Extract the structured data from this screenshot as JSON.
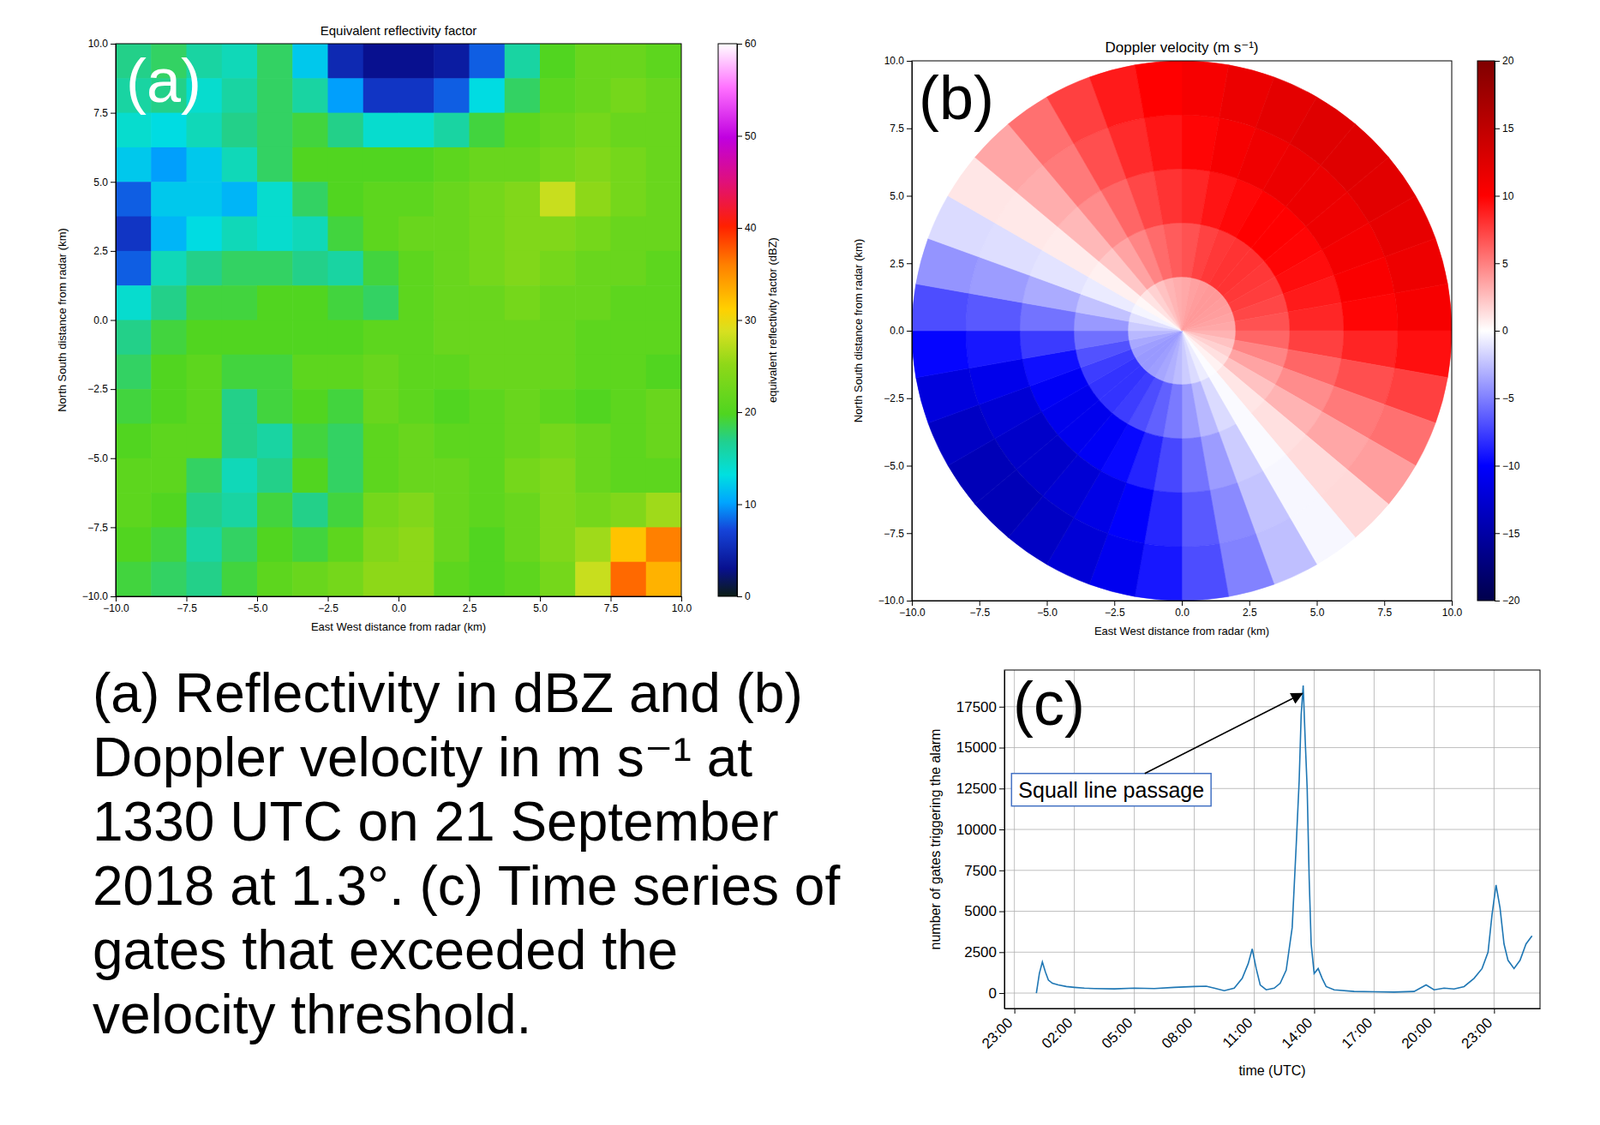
{
  "caption": "(a) Reflectivity in dBZ and (b) Doppler velocity in m s⁻¹ at 1330 UTC on 21 September 2018 at 1.3°. (c) Time series of gates that exceeded the velocity threshold.",
  "chart_data": [
    {
      "type": "heatmap",
      "panel_label": "(a)",
      "title": "Equivalent reflectivity factor",
      "x_label": "East West distance from radar (km)",
      "y_label": "North South distance from radar (km)",
      "xlim": [
        -10,
        10
      ],
      "ylim": [
        -10,
        10
      ],
      "xticks": [
        {
          "value": -10,
          "label": "−10.0"
        },
        {
          "value": -7.5,
          "label": "−7.5"
        },
        {
          "value": -5,
          "label": "−5.0"
        },
        {
          "value": -2.5,
          "label": "−2.5"
        },
        {
          "value": 0,
          "label": "0.0"
        },
        2.5,
        {
          "value": 5,
          "label": "5.0"
        },
        7.5,
        {
          "value": 10,
          "label": "10.0"
        }
      ],
      "yticks": [
        {
          "value": -10,
          "label": "−10.0"
        },
        {
          "value": -7.5,
          "label": "−7.5"
        },
        {
          "value": -5,
          "label": "−5.0"
        },
        {
          "value": -2.5,
          "label": "−2.5"
        },
        {
          "value": 0,
          "label": "0.0"
        },
        2.5,
        {
          "value": 5,
          "label": "5.0"
        },
        7.5,
        {
          "value": 10,
          "label": "10.0"
        }
      ],
      "x_edges": [
        -10,
        -8.75,
        -7.5,
        -6.25,
        -5,
        -3.75,
        -2.5,
        -1.25,
        0,
        1.25,
        2.5,
        3.75,
        5,
        6.25,
        7.5,
        8.75,
        10
      ],
      "y_edges": [
        10,
        8.75,
        7.5,
        6.25,
        5,
        3.75,
        2.5,
        1.25,
        0,
        -1.25,
        -2.5,
        -3.75,
        -5,
        -6.25,
        -7.5,
        -8.75,
        -10
      ],
      "z": [
        [
          17,
          18,
          16,
          15,
          18,
          12,
          5,
          3,
          3,
          4,
          8,
          16,
          20,
          22,
          22,
          21
        ],
        [
          16,
          17,
          14,
          16,
          18,
          16,
          10,
          6,
          6,
          8,
          13,
          18,
          21,
          22,
          23,
          22
        ],
        [
          14,
          13,
          15,
          17,
          18,
          19,
          17,
          14,
          14,
          16,
          19,
          21,
          22,
          23,
          22,
          22
        ],
        [
          12,
          10,
          12,
          15,
          18,
          20,
          20,
          20,
          20,
          21,
          22,
          22,
          23,
          24,
          23,
          22
        ],
        [
          8,
          12,
          12,
          11,
          14,
          18,
          20,
          21,
          21,
          22,
          23,
          24,
          28,
          25,
          23,
          22
        ],
        [
          6,
          11,
          13,
          15,
          14,
          15,
          19,
          21,
          22,
          22,
          23,
          24,
          24,
          23,
          22,
          22
        ],
        [
          8,
          15,
          17,
          18,
          18,
          17,
          16,
          19,
          21,
          22,
          23,
          24,
          23,
          22,
          22,
          21
        ],
        [
          14,
          17,
          19,
          19,
          20,
          20,
          19,
          18,
          21,
          22,
          22,
          23,
          22,
          22,
          21,
          21
        ],
        [
          17,
          19,
          20,
          20,
          20,
          20,
          20,
          21,
          21,
          22,
          22,
          22,
          22,
          21,
          21,
          21
        ],
        [
          18,
          20,
          21,
          19,
          19,
          21,
          21,
          22,
          21,
          21,
          22,
          22,
          22,
          21,
          21,
          20
        ],
        [
          19,
          20,
          21,
          17,
          19,
          20,
          19,
          22,
          21,
          20,
          21,
          22,
          21,
          20,
          21,
          22
        ],
        [
          20,
          21,
          21,
          17,
          16,
          19,
          18,
          21,
          22,
          21,
          21,
          22,
          23,
          22,
          21,
          22
        ],
        [
          21,
          21,
          18,
          15,
          17,
          20,
          18,
          21,
          22,
          22,
          21,
          23,
          24,
          22,
          21,
          21
        ],
        [
          21,
          20,
          17,
          16,
          19,
          17,
          19,
          23,
          24,
          22,
          21,
          22,
          24,
          23,
          24,
          26
        ],
        [
          20,
          19,
          16,
          18,
          20,
          19,
          21,
          24,
          25,
          22,
          20,
          22,
          24,
          26,
          32,
          36
        ],
        [
          19,
          18,
          17,
          19,
          21,
          22,
          23,
          25,
          25,
          21,
          20,
          21,
          23,
          28,
          37,
          33
        ]
      ],
      "colorbar": {
        "label": "equivalent reflectivity factor (dBZ)",
        "range": [
          0,
          60
        ],
        "ticks": [
          0,
          10,
          20,
          30,
          40,
          50,
          60
        ]
      }
    },
    {
      "type": "polar_heatmap",
      "panel_label": "(b)",
      "title": "Doppler velocity (m s⁻¹)",
      "x_label": "East West distance from radar (km)",
      "y_label": "North South distance from radar (km)",
      "xlim": [
        -10,
        10
      ],
      "ylim": [
        -10,
        10
      ],
      "xticks": [
        {
          "value": -10,
          "label": "−10.0"
        },
        {
          "value": -7.5,
          "label": "−7.5"
        },
        {
          "value": -5,
          "label": "−5.0"
        },
        {
          "value": -2.5,
          "label": "−2.5"
        },
        {
          "value": 0,
          "label": "0.0"
        },
        2.5,
        {
          "value": 5,
          "label": "5.0"
        },
        7.5,
        {
          "value": 10,
          "label": "10.0"
        }
      ],
      "yticks": [
        {
          "value": -10,
          "label": "−10.0"
        },
        {
          "value": -7.5,
          "label": "−7.5"
        },
        {
          "value": -5,
          "label": "−5.0"
        },
        {
          "value": -2.5,
          "label": "−2.5"
        },
        {
          "value": 0,
          "label": "0.0"
        },
        2.5,
        {
          "value": 5,
          "label": "5.0"
        },
        7.5,
        {
          "value": 10,
          "label": "10.0"
        }
      ],
      "azimuth_edges": [
        0,
        10,
        20,
        30,
        40,
        50,
        60,
        70,
        80,
        90,
        100,
        110,
        120,
        130,
        140,
        150,
        160,
        170,
        180,
        190,
        200,
        210,
        220,
        230,
        240,
        250,
        260,
        270,
        280,
        290,
        300,
        310,
        320,
        330,
        340,
        350,
        360
      ],
      "range_edges": [
        0,
        2,
        4,
        6,
        8,
        10
      ],
      "z": [
        [
          3.4,
          3.7,
          3.9,
          4,
          4,
          3.9,
          3.8,
          3.6,
          3.4,
          3,
          2.4,
          1.8,
          1.2,
          0.5,
          -0.1,
          -0.7,
          -1.4,
          -2,
          -2.6,
          -3.1,
          -3.5,
          -3.8,
          -4,
          -4,
          -3.8,
          -3.4,
          -2.8,
          -2,
          -1.2,
          -0.4,
          0.3,
          1.1,
          1.8,
          2.4,
          2.9,
          3.2
        ],
        [
          6.8,
          7.4,
          7.8,
          8,
          8,
          7.8,
          7.6,
          7.2,
          6.8,
          6,
          4.8,
          3.6,
          2.4,
          1,
          -0.2,
          -1.4,
          -2.8,
          -4,
          -5.2,
          -6.2,
          -7,
          -7.6,
          -8,
          -8,
          -7.6,
          -6.8,
          -5.6,
          -4,
          -2.4,
          -0.8,
          0.6,
          2.2,
          3.6,
          4.8,
          5.8,
          6.4
        ],
        [
          8.5,
          9.2,
          9.7,
          10,
          10,
          9.8,
          9.5,
          9,
          8.5,
          7.5,
          6,
          4.5,
          3,
          1.2,
          -0.2,
          -2,
          -3.9,
          -5.5,
          -7.2,
          -8.6,
          -9.7,
          -10.5,
          -11,
          -11,
          -10.5,
          -9.4,
          -7.7,
          -5.5,
          -3.3,
          -1.1,
          0.8,
          2.8,
          4.5,
          6,
          7.2,
          8
        ],
        [
          9.8,
          10.6,
          11.2,
          11.5,
          11.5,
          11.3,
          10.9,
          10.4,
          9.8,
          8.6,
          6.9,
          5.2,
          3.5,
          1.4,
          -0.3,
          -2.3,
          -4.6,
          -6.5,
          -8.5,
          -10.1,
          -11.4,
          -12.4,
          -13,
          -13,
          -12.4,
          -11.1,
          -9.1,
          -6.5,
          -3.9,
          -1.3,
          0.9,
          3.2,
          5.2,
          6.9,
          8.3,
          9.2
        ],
        [
          10.6,
          11.5,
          12.1,
          12.5,
          12.5,
          12.3,
          11.9,
          11.3,
          10.6,
          9.4,
          7.5,
          5.6,
          3.8,
          1.5,
          -0.3,
          -2.5,
          -4.9,
          -7,
          -9.1,
          -10.9,
          -12.3,
          -13.3,
          -14,
          -14,
          -13.3,
          -11.9,
          -9.8,
          -7,
          -4.2,
          -1.4,
          1,
          3.5,
          5.6,
          7.5,
          9,
          10
        ]
      ],
      "colorbar": {
        "range": [
          -20,
          20
        ],
        "ticks": [
          {
            "value": -20,
            "label": "−20"
          },
          {
            "value": -15,
            "label": "−15"
          },
          {
            "value": -10,
            "label": "−10"
          },
          {
            "value": -5,
            "label": "−5"
          },
          0,
          5,
          10,
          15,
          20
        ]
      }
    },
    {
      "type": "line",
      "panel_label": "(c)",
      "x_label": "time (UTC)",
      "y_label": "number of gates triggering the alarm",
      "color": "#1f77b4",
      "grid": true,
      "xlim": [
        -1.5,
        25.3
      ],
      "ylim": [
        -940,
        19740
      ],
      "xticks": [
        {
          "value": -1,
          "label": "23:00"
        },
        {
          "value": 2,
          "label": "02:00"
        },
        {
          "value": 5,
          "label": "05:00"
        },
        {
          "value": 8,
          "label": "08:00"
        },
        {
          "value": 11,
          "label": "11:00"
        },
        {
          "value": 14,
          "label": "14:00"
        },
        {
          "value": 17,
          "label": "17:00"
        },
        {
          "value": 20,
          "label": "20:00"
        },
        {
          "value": 23,
          "label": "23:00"
        }
      ],
      "yticks": [
        0,
        2500,
        5000,
        7500,
        10000,
        12500,
        15000,
        17500
      ],
      "x": [
        0.1,
        0.25,
        0.4,
        0.55,
        0.7,
        0.9,
        1.2,
        1.6,
        2.0,
        2.5,
        3.0,
        4.0,
        5.0,
        6.0,
        7.0,
        8.0,
        8.6,
        9.0,
        9.5,
        10.0,
        10.4,
        10.7,
        10.9,
        11.1,
        11.3,
        11.6,
        12.0,
        12.3,
        12.6,
        12.9,
        13.1,
        13.25,
        13.35,
        13.45,
        13.55,
        13.65,
        13.75,
        13.85,
        14.0,
        14.2,
        14.4,
        14.6,
        15.0,
        16.0,
        17.0,
        18.0,
        19.0,
        19.6,
        20.0,
        20.5,
        21.0,
        21.5,
        22.0,
        22.4,
        22.7,
        22.9,
        23.1,
        23.3,
        23.5,
        23.7,
        24.0,
        24.3,
        24.6,
        24.9
      ],
      "values": [
        0,
        1200,
        1900,
        1300,
        800,
        600,
        500,
        400,
        350,
        300,
        280,
        260,
        300,
        280,
        350,
        400,
        420,
        300,
        150,
        300,
        900,
        1800,
        2700,
        1500,
        500,
        200,
        300,
        600,
        1400,
        4000,
        9000,
        13000,
        17000,
        18800,
        15500,
        12500,
        7000,
        3000,
        1200,
        1500,
        900,
        400,
        200,
        100,
        80,
        60,
        100,
        500,
        200,
        300,
        250,
        400,
        900,
        1500,
        2500,
        4800,
        6600,
        5200,
        3000,
        2000,
        1500,
        2000,
        3000,
        3500
      ],
      "annotations": [
        {
          "text": "Squall line passage",
          "xy": [
            13.4,
            18300
          ],
          "xytext": [
            -0.8,
            12300
          ]
        }
      ]
    }
  ]
}
